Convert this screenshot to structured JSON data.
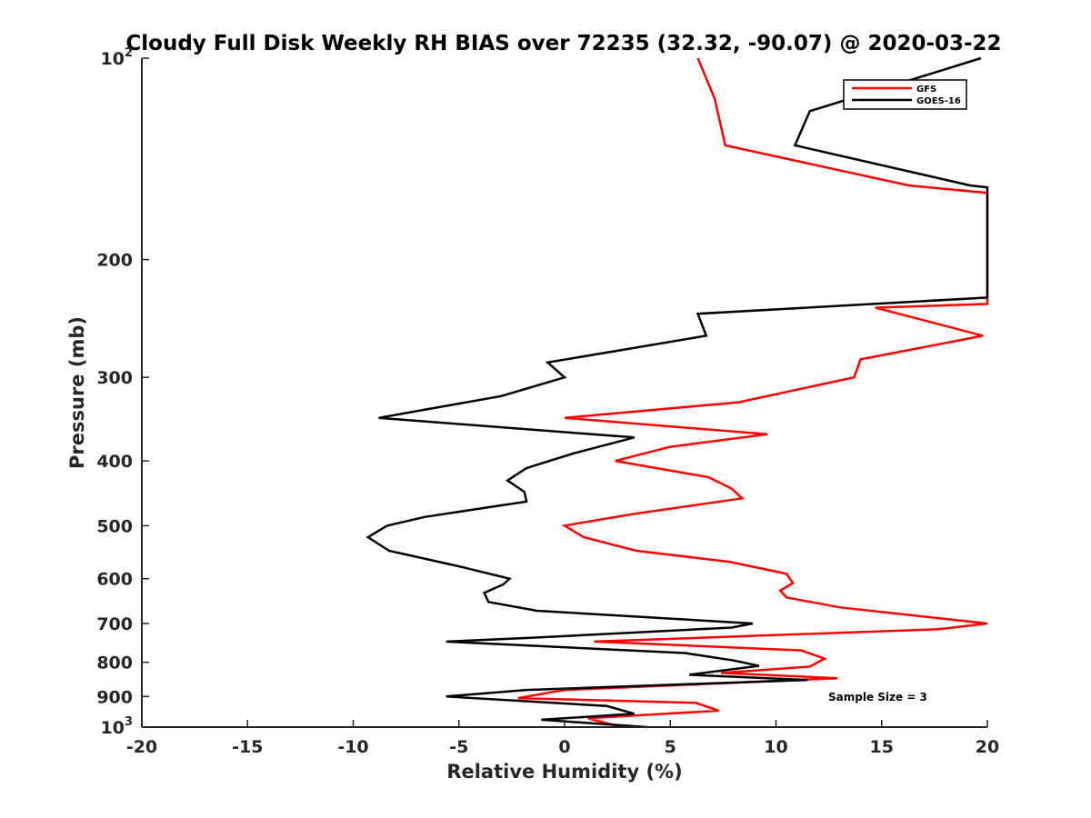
{
  "chart_data": {
    "type": "line",
    "title": "Cloudy Full Disk Weekly RH BIAS over 72235 (32.32, -90.07) @ 2020-03-22",
    "xlabel": "Relative Humidity (%)",
    "ylabel": "Pressure (mb)",
    "xlim": [
      -20,
      20
    ],
    "ylim": [
      100,
      1000
    ],
    "yscale": "log",
    "y_reversed": true,
    "grid": false,
    "legend_position": "top-right",
    "x_ticks": [
      "-20",
      "-15",
      "-10",
      "-5",
      "0",
      "5",
      "10",
      "15",
      "20"
    ],
    "y_ticks": [
      {
        "value": 100,
        "label": "10",
        "sup": "2"
      },
      {
        "value": 200,
        "label": "200",
        "sup": ""
      },
      {
        "value": 300,
        "label": "300",
        "sup": ""
      },
      {
        "value": 400,
        "label": "400",
        "sup": ""
      },
      {
        "value": 500,
        "label": "500",
        "sup": ""
      },
      {
        "value": 600,
        "label": "600",
        "sup": ""
      },
      {
        "value": 700,
        "label": "700",
        "sup": ""
      },
      {
        "value": 800,
        "label": "800",
        "sup": ""
      },
      {
        "value": 900,
        "label": "900",
        "sup": ""
      },
      {
        "value": 1000,
        "label": "10",
        "sup": "3"
      }
    ],
    "annotation": "Sample Size = 3",
    "series": [
      {
        "name": "GFS",
        "color": "#ff0000",
        "points": [
          [
            6.3,
            100
          ],
          [
            7.1,
            115
          ],
          [
            7.6,
            135
          ],
          [
            16.3,
            155
          ],
          [
            20,
            159
          ],
          [
            20,
            233
          ],
          [
            14.7,
            236
          ],
          [
            19.8,
            260
          ],
          [
            14.0,
            282
          ],
          [
            13.7,
            300
          ],
          [
            8.2,
            327
          ],
          [
            0,
            345
          ],
          [
            9.6,
            365
          ],
          [
            5,
            381
          ],
          [
            2.4,
            400
          ],
          [
            6.8,
            423
          ],
          [
            7.9,
            440
          ],
          [
            8.4,
            455
          ],
          [
            3.3,
            480
          ],
          [
            0,
            500
          ],
          [
            0.9,
            520
          ],
          [
            3.4,
            545
          ],
          [
            7.8,
            566
          ],
          [
            10.5,
            590
          ],
          [
            10.8,
            609
          ],
          [
            10.2,
            625
          ],
          [
            10.5,
            640
          ],
          [
            13.0,
            662
          ],
          [
            20,
            700
          ],
          [
            17.7,
            714
          ],
          [
            1.4,
            745
          ],
          [
            11.2,
            768
          ],
          [
            12.3,
            790
          ],
          [
            11.6,
            812
          ],
          [
            7.4,
            830
          ],
          [
            12.9,
            845
          ],
          [
            7.4,
            860
          ],
          [
            0,
            880
          ],
          [
            -2.2,
            905
          ],
          [
            6.2,
            920
          ],
          [
            7.3,
            945
          ],
          [
            1.1,
            970
          ],
          [
            2.7,
            1000
          ]
        ]
      },
      {
        "name": "GOES-16",
        "color": "#000000",
        "points": [
          [
            19.7,
            100
          ],
          [
            11.6,
            120
          ],
          [
            10.9,
            135
          ],
          [
            19.2,
            155
          ],
          [
            20,
            156
          ],
          [
            20,
            228
          ],
          [
            6.3,
            241
          ],
          [
            6.7,
            260
          ],
          [
            -0.8,
            285
          ],
          [
            0,
            300
          ],
          [
            -3.0,
            320
          ],
          [
            -8.8,
            345
          ],
          [
            3.3,
            369
          ],
          [
            0.4,
            390
          ],
          [
            -1.8,
            410
          ],
          [
            -2.7,
            428
          ],
          [
            -1.9,
            445
          ],
          [
            -1.8,
            460
          ],
          [
            -6.6,
            485
          ],
          [
            -8.4,
            500
          ],
          [
            -9.3,
            520
          ],
          [
            -8.3,
            545
          ],
          [
            -5.0,
            575
          ],
          [
            -2.6,
            600
          ],
          [
            -2.9,
            612
          ],
          [
            -3.8,
            630
          ],
          [
            -3.6,
            650
          ],
          [
            -1.3,
            670
          ],
          [
            8.9,
            700
          ],
          [
            7.9,
            710
          ],
          [
            -1.5,
            735
          ],
          [
            -5.6,
            745
          ],
          [
            5.7,
            775
          ],
          [
            8.0,
            795
          ],
          [
            9.2,
            810
          ],
          [
            5.9,
            835
          ],
          [
            11.5,
            850
          ],
          [
            -1.8,
            880
          ],
          [
            -5.6,
            900
          ],
          [
            2.0,
            930
          ],
          [
            3.3,
            955
          ],
          [
            -1.1,
            975
          ],
          [
            3.9,
            1000
          ]
        ]
      }
    ]
  }
}
